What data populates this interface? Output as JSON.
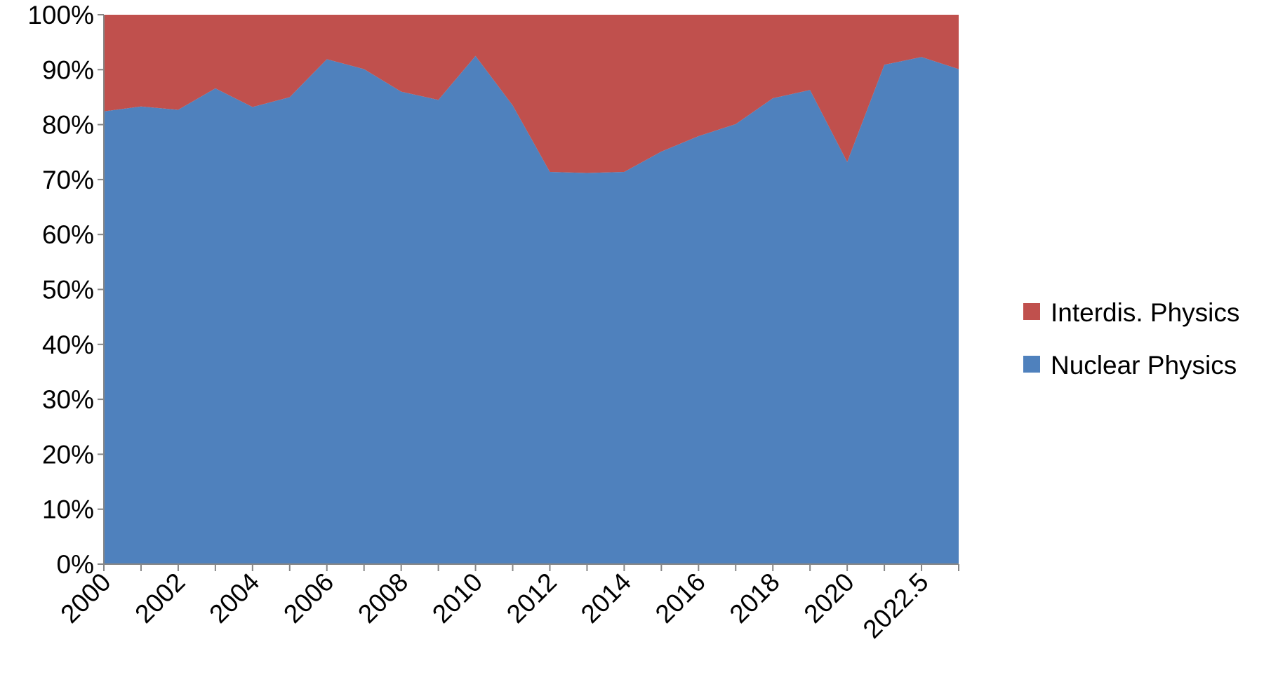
{
  "chart_data": {
    "type": "area",
    "stacked": true,
    "categories": [
      "2000",
      null,
      "2002",
      null,
      "2004",
      null,
      "2006",
      null,
      "2008",
      null,
      "2010",
      null,
      "2012",
      null,
      "2014",
      null,
      "2016",
      null,
      "2018",
      null,
      "2020",
      null,
      "2022.5",
      null
    ],
    "series": [
      {
        "name": "Nuclear Physics",
        "color": "#4f81bd",
        "values": [
          82.4,
          83.3,
          82.7,
          86.6,
          83.2,
          85.0,
          91.9,
          90.1,
          86.0,
          84.5,
          92.5,
          83.5,
          71.4,
          71.2,
          71.4,
          75.1,
          77.9,
          80.1,
          84.8,
          86.3,
          73.2,
          90.9,
          92.3,
          90.1
        ]
      },
      {
        "name": "Interdis. Physics",
        "color": "#c0504d",
        "values": [
          17.6,
          16.7,
          17.3,
          13.4,
          16.8,
          15.0,
          8.1,
          9.9,
          14.0,
          15.5,
          7.5,
          16.5,
          28.6,
          28.8,
          28.6,
          24.9,
          22.1,
          19.9,
          15.2,
          13.7,
          26.8,
          9.1,
          7.7,
          9.9
        ]
      }
    ],
    "ylim": [
      0,
      100
    ],
    "yticks": [
      {
        "value": 0,
        "label": "0%"
      },
      {
        "value": 10,
        "label": "10%"
      },
      {
        "value": 20,
        "label": "20%"
      },
      {
        "value": 30,
        "label": "30%"
      },
      {
        "value": 40,
        "label": "40%"
      },
      {
        "value": 50,
        "label": "50%"
      },
      {
        "value": 60,
        "label": "60%"
      },
      {
        "value": 70,
        "label": "70%"
      },
      {
        "value": 80,
        "label": "80%"
      },
      {
        "value": 90,
        "label": "90%"
      },
      {
        "value": 100,
        "label": "100%"
      }
    ],
    "legend": "right"
  }
}
